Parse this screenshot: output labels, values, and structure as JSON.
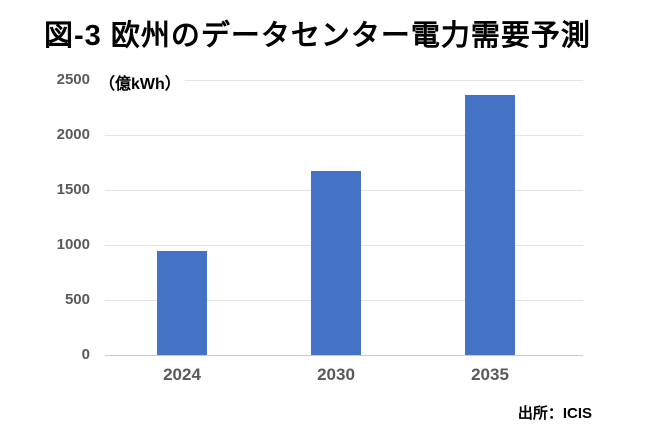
{
  "page": {
    "title": "図-3 欧州のデータセンター電力需要予測",
    "source": "出所：ICIS"
  },
  "chart_data": {
    "type": "bar",
    "title": "図-3 欧州のデータセンター電力需要予測",
    "unit_label": "（億kWh）",
    "categories": [
      "2024",
      "2030",
      "2035"
    ],
    "values": [
      950,
      1670,
      2360
    ],
    "xlabel": "",
    "ylabel": "（億kWh）",
    "ylim": [
      0,
      2500
    ],
    "yticks": [
      0,
      500,
      1000,
      1500,
      2000,
      2500
    ],
    "grid": true,
    "legend": false,
    "bar_color": "#4472c4",
    "tick_label_color": "#595959",
    "gridline_color": "#e2e2e2",
    "source": "出所：ICIS"
  }
}
